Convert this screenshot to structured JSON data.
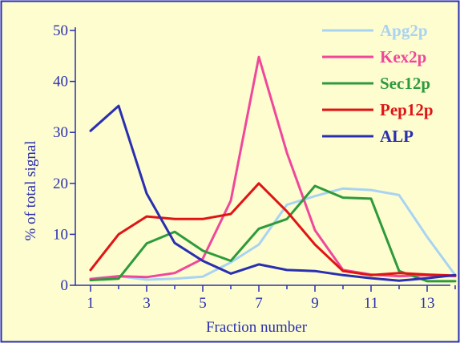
{
  "chart_data": {
    "type": "line",
    "title": "",
    "xlabel": "Fraction number",
    "ylabel": "% of total signal",
    "x": [
      1,
      2,
      3,
      4,
      5,
      6,
      7,
      8,
      9,
      10,
      11,
      12,
      13,
      14
    ],
    "xlim": [
      0.5,
      14
    ],
    "ylim": [
      0,
      50
    ],
    "x_ticks": [
      "1",
      "3",
      "5",
      "7",
      "9",
      "11",
      "13"
    ],
    "x_tick_values": [
      1,
      3,
      5,
      7,
      9,
      11,
      13
    ],
    "y_ticks": [
      "0",
      "10",
      "20",
      "30",
      "40",
      "50"
    ],
    "y_tick_values": [
      0,
      10,
      20,
      30,
      40,
      50
    ],
    "grid": false,
    "legend_position": "top-right",
    "background": "#fdfdd0",
    "axis_color": "#2a2fb0",
    "series": [
      {
        "name": "Apg2p",
        "color": "#a9d3f2",
        "values": [
          1.3,
          1.8,
          1.1,
          1.3,
          1.7,
          4.5,
          8.0,
          15.8,
          17.5,
          19.0,
          18.7,
          17.7,
          9.5,
          2.0
        ]
      },
      {
        "name": "Kex2p",
        "color": "#f0479b",
        "values": [
          1.2,
          1.8,
          1.6,
          2.4,
          5.2,
          16.6,
          44.8,
          26.0,
          10.8,
          3.0,
          2.1,
          1.8,
          2.0,
          1.8
        ]
      },
      {
        "name": "Sec12p",
        "color": "#2e9a3c",
        "values": [
          1.0,
          1.3,
          8.2,
          10.5,
          6.8,
          4.8,
          11.1,
          13.0,
          19.5,
          17.2,
          17.0,
          2.8,
          0.8,
          0.8
        ]
      },
      {
        "name": "Pep12p",
        "color": "#e01414",
        "values": [
          3.0,
          10.0,
          13.5,
          13.0,
          13.0,
          14.0,
          20.0,
          14.5,
          8.0,
          2.8,
          2.0,
          2.4,
          2.1,
          1.9
        ]
      },
      {
        "name": "ALP",
        "color": "#2a2fb0",
        "values": [
          30.3,
          35.2,
          18.0,
          8.3,
          4.8,
          2.3,
          4.1,
          3.0,
          2.8,
          2.0,
          1.4,
          0.9,
          1.4,
          2.0
        ]
      }
    ]
  }
}
